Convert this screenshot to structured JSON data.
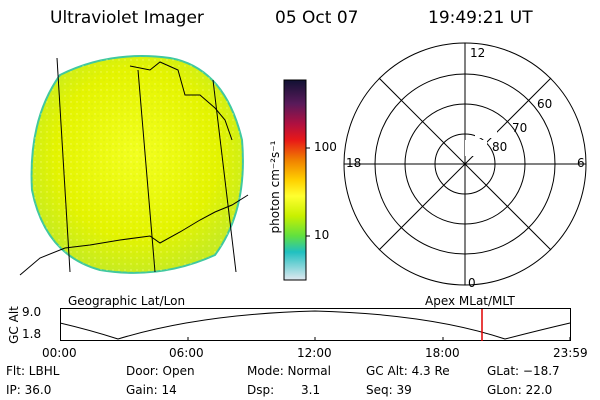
{
  "header": {
    "title": "Ultraviolet Imager",
    "date": "05 Oct 07",
    "time": "19:49:21 UT"
  },
  "colorbar": {
    "unit_label": "photon cm⁻²s⁻¹",
    "ticks": [
      "100",
      "10"
    ],
    "colors": [
      "#111133",
      "#5a1a5a",
      "#a0104a",
      "#e01020",
      "#f08000",
      "#ffd000",
      "#ffff30",
      "#c8f000",
      "#60e040",
      "#20c0c0",
      "#d0d8e0"
    ]
  },
  "polar_plot": {
    "lat_labels": [
      "60",
      "70",
      "80"
    ],
    "mlt_labels": {
      "top": "12",
      "left": "18",
      "right": "6",
      "bottom": "0"
    }
  },
  "timeline": {
    "left_title": "Geographic Lat/Lon",
    "right_title": "Apex MLat/MLT",
    "axis_label": "GC Alt",
    "y_ticks": [
      "9.0",
      "1.8"
    ],
    "x_ticks": [
      "00:00",
      "06:00",
      "12:00",
      "18:00",
      "23:59"
    ],
    "marker_color": "#e00000"
  },
  "status": {
    "filter": "Flt: LBHL",
    "door": "Door: Open",
    "mode": "Mode: Normal",
    "gc_alt": "GC Alt: 4.3 Re",
    "glat": "GLat: −18.7",
    "ip": "IP: 36.0",
    "gain": "Gain: 14",
    "dsp_label": "Dsp:",
    "dsp_value": "3.1",
    "seq": "Seq: 39",
    "glon": "GLon: 22.0"
  },
  "colors": {
    "disk_fill": "#e8f400",
    "disk_edge": "#40c8a0",
    "line": "#000000"
  }
}
